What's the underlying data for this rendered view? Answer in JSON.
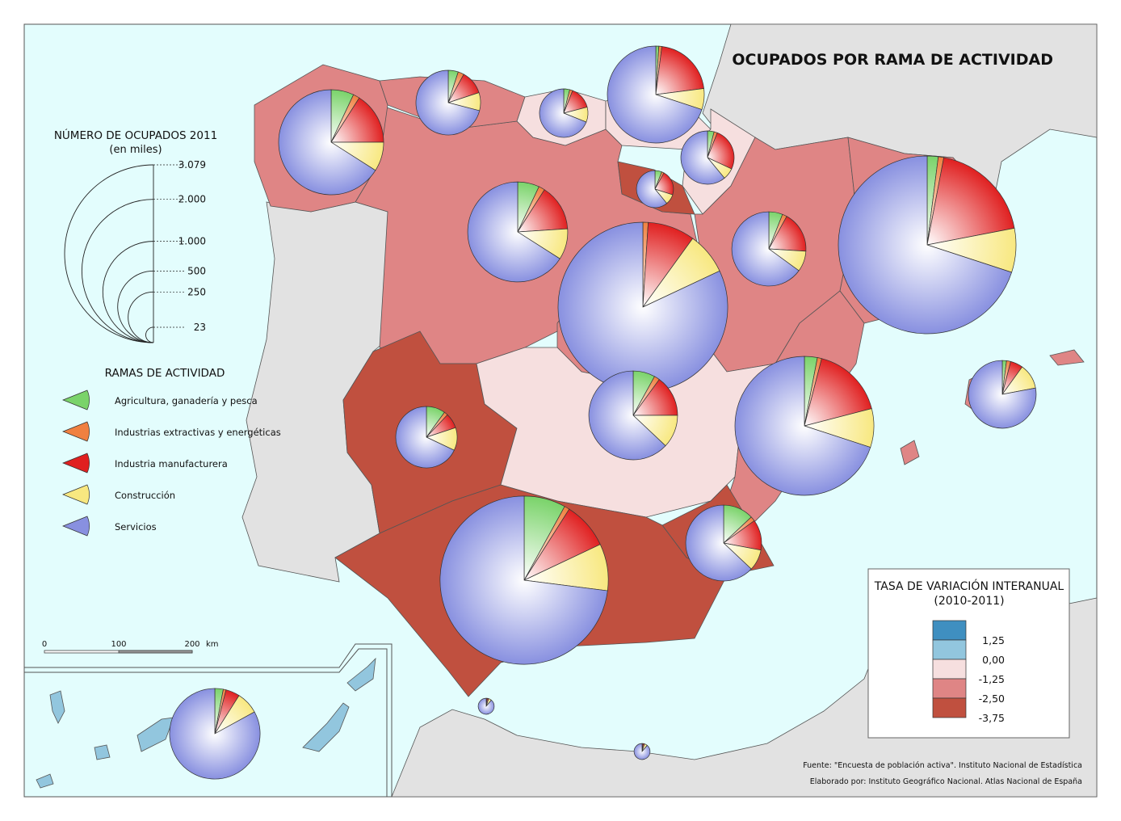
{
  "title": "OCUPADOS POR RAMA DE ACTIVIDAD",
  "size_legend": {
    "title": "NÚMERO DE OCUPADOS 2011",
    "subtitle": "(en miles)",
    "ticks": [
      {
        "label": "3.079",
        "value": 3079
      },
      {
        "label": "2.000",
        "value": 2000
      },
      {
        "label": "1.000",
        "value": 1000
      },
      {
        "label": "500",
        "value": 500
      },
      {
        "label": "250",
        "value": 250
      },
      {
        "label": "23",
        "value": 23
      }
    ]
  },
  "branches_legend": {
    "title": "RAMAS DE ACTIVIDAD",
    "items": [
      {
        "label": "Agricultura, ganadería y pesca",
        "color": "#7ad36a"
      },
      {
        "label": "Industrias extractivas y energéticas",
        "color": "#f08040"
      },
      {
        "label": "Industria manufacturera",
        "color": "#e02020"
      },
      {
        "label": "Construcción",
        "color": "#f8e880"
      },
      {
        "label": "Servicios",
        "color": "#8890e0"
      }
    ]
  },
  "rate_legend": {
    "title": "TASA DE VARIACIÓN INTERANUAL",
    "subtitle": "(2010-2011)",
    "classes": [
      {
        "color": "#3f8fc0"
      },
      {
        "color": "#92c6de"
      },
      {
        "color": "#f6dfdf"
      },
      {
        "color": "#df8585"
      },
      {
        "color": "#c0503f"
      }
    ],
    "labels": [
      "1,25",
      "0,00",
      "-1,25",
      "-2,50",
      "-3,75"
    ]
  },
  "scale_bar": {
    "labels": [
      "0",
      "100",
      "200"
    ],
    "unit": "km"
  },
  "source": "Fuente: \"Encuesta de población activa\". Instituto Nacional de Estadística",
  "credits": "Elaborado por: Instituto Geográfico Nacional. Atlas Nacional de España",
  "regions": {
    "galicia": {
      "rate_class": 3
    },
    "asturias": {
      "rate_class": 3
    },
    "cantabria": {
      "rate_class": 2
    },
    "pais_vasco": {
      "rate_class": 2
    },
    "navarra": {
      "rate_class": 2
    },
    "la_rioja": {
      "rate_class": 4
    },
    "castilla_leon": {
      "rate_class": 3
    },
    "madrid": {
      "rate_class": 3
    },
    "aragon": {
      "rate_class": 3
    },
    "cataluna": {
      "rate_class": 3
    },
    "extremadura": {
      "rate_class": 4
    },
    "castilla_la_mancha": {
      "rate_class": 2
    },
    "valencia": {
      "rate_class": 3
    },
    "murcia": {
      "rate_class": 4
    },
    "andalucia": {
      "rate_class": 4
    },
    "baleares": {
      "rate_class": 3
    },
    "canarias": {
      "rate_class": 1
    }
  },
  "pies": {
    "galicia": {
      "value": 1075,
      "shares": [
        7,
        2,
        16,
        9,
        66
      ]
    },
    "asturias": {
      "value": 407,
      "shares": [
        5,
        3,
        12,
        9,
        71
      ]
    },
    "cantabria": {
      "value": 229,
      "shares": [
        4,
        2,
        15,
        10,
        69
      ]
    },
    "pais_vasco": {
      "value": 916,
      "shares": [
        1,
        1,
        21,
        7,
        70
      ]
    },
    "navarra": {
      "value": 277,
      "shares": [
        4,
        2,
        26,
        7,
        61
      ]
    },
    "la_rioja": {
      "value": 134,
      "shares": [
        6,
        2,
        22,
        9,
        61
      ]
    },
    "castilla_leon": {
      "value": 975,
      "shares": [
        7,
        2,
        15,
        10,
        66
      ]
    },
    "madrid": {
      "value": 2806,
      "shares": [
        0,
        1,
        9,
        8,
        82
      ]
    },
    "aragon": {
      "value": 537,
      "shares": [
        6,
        2,
        18,
        9,
        65
      ]
    },
    "cataluna": {
      "value": 3079,
      "shares": [
        2,
        1,
        19,
        8,
        70
      ]
    },
    "extremadura": {
      "value": 367,
      "shares": [
        10,
        2,
        8,
        12,
        68
      ]
    },
    "castilla_la_mancha": {
      "value": 768,
      "shares": [
        8,
        2,
        15,
        12,
        63
      ]
    },
    "valencia": {
      "value": 1882,
      "shares": [
        3,
        1,
        17,
        9,
        70
      ]
    },
    "baleares": {
      "value": 448,
      "shares": [
        2,
        2,
        6,
        12,
        78
      ]
    },
    "murcia": {
      "value": 561,
      "shares": [
        13,
        2,
        13,
        9,
        63
      ]
    },
    "andalucia": {
      "value": 2759,
      "shares": [
        8,
        1,
        9,
        9,
        73
      ]
    },
    "canarias": {
      "value": 800,
      "shares": [
        3,
        1,
        5,
        8,
        83
      ]
    },
    "ceuta": {
      "value": 25,
      "shares": [
        0,
        2,
        3,
        6,
        89
      ]
    },
    "melilla": {
      "value": 25,
      "shares": [
        0,
        2,
        3,
        6,
        89
      ]
    }
  }
}
